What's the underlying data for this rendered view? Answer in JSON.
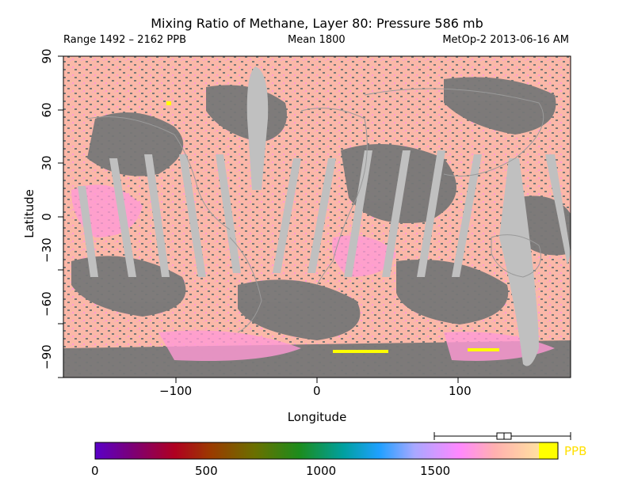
{
  "header": {
    "title": "Mixing Ratio of Methane, Layer 80: Pressure 586 mb",
    "range": "Range 1492 – 2162 PPB",
    "mean": "Mean 1800",
    "source": "MetOp-2 2013-06-16 AM"
  },
  "map": {
    "xlabel": "Longitude",
    "ylabel": "Latitude",
    "xlim": [
      -180,
      180
    ],
    "ylim": [
      -90,
      90
    ],
    "x_ticks": [
      "−100",
      "0",
      "100"
    ],
    "y_ticks": [
      "−90",
      "−60",
      "−30",
      "0",
      "30",
      "60",
      "90"
    ],
    "colors": {
      "missing": "#777777",
      "swath_gap": "#c0c0c0",
      "background_value": "#fbb8a8",
      "high_value": "#ff9ad4"
    }
  },
  "colorbar": {
    "unit": "PPB",
    "ticks": [
      "0",
      "500",
      "1000",
      "1500"
    ],
    "range": [
      0,
      2000
    ],
    "boxplot": {
      "min": 1492,
      "q1": 1780,
      "median": 1800,
      "q3": 1825,
      "max": 2162
    }
  }
}
